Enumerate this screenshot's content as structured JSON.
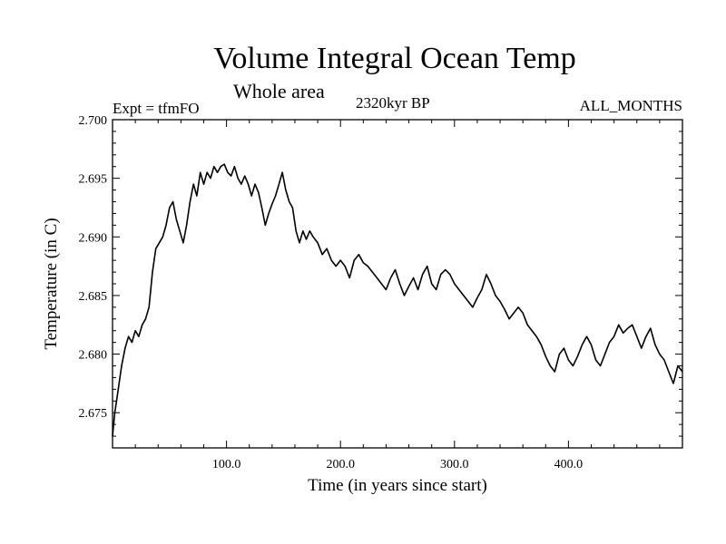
{
  "chart_data": {
    "type": "line",
    "title": "Volume Integral Ocean Temp",
    "subtitle": "Whole area",
    "left_label": "Expt = tfmFO",
    "center_label": "2320kyr BP",
    "right_label": "ALL_MONTHS",
    "xlabel": "Time (in years since start)",
    "ylabel": "Temperature (in C)",
    "xlim": [
      0,
      500
    ],
    "ylim": [
      2.672,
      2.7
    ],
    "xticks": [
      100,
      200,
      300,
      400
    ],
    "xtick_labels": [
      "100.0",
      "200.0",
      "300.0",
      "400.0"
    ],
    "yticks": [
      2.675,
      2.68,
      2.685,
      2.69,
      2.695,
      2.7
    ],
    "ytick_labels": [
      "2.675",
      "2.680",
      "2.685",
      "2.690",
      "2.695",
      "2.700"
    ],
    "grid": false,
    "series": [
      {
        "name": "Volume Integral Ocean Temp",
        "x": [
          0,
          2,
          5,
          8,
          11,
          14,
          17,
          20,
          23,
          26,
          29,
          32,
          35,
          38,
          41,
          44,
          47,
          50,
          53,
          56,
          59,
          62,
          65,
          68,
          71,
          74,
          77,
          80,
          83,
          86,
          89,
          92,
          95,
          98,
          101,
          104,
          107,
          110,
          113,
          116,
          119,
          122,
          125,
          128,
          131,
          134,
          137,
          140,
          143,
          146,
          149,
          152,
          155,
          158,
          161,
          164,
          167,
          170,
          173,
          176,
          180,
          184,
          188,
          192,
          196,
          200,
          204,
          208,
          212,
          216,
          220,
          224,
          228,
          232,
          236,
          240,
          244,
          248,
          252,
          256,
          260,
          264,
          268,
          272,
          276,
          280,
          284,
          288,
          292,
          296,
          300,
          304,
          308,
          312,
          316,
          320,
          324,
          328,
          332,
          336,
          340,
          344,
          348,
          352,
          356,
          360,
          364,
          368,
          372,
          376,
          380,
          384,
          388,
          392,
          396,
          400,
          404,
          408,
          412,
          416,
          420,
          424,
          428,
          432,
          436,
          440,
          444,
          448,
          452,
          456,
          460,
          464,
          468,
          472,
          476,
          480,
          484,
          488,
          492,
          496,
          500
        ],
        "values": [
          2.673,
          2.675,
          2.677,
          2.679,
          2.6805,
          2.6815,
          2.681,
          2.682,
          2.6815,
          2.6825,
          2.683,
          2.684,
          2.687,
          2.689,
          2.6895,
          2.69,
          2.691,
          2.6925,
          2.693,
          2.6915,
          2.6905,
          2.6895,
          2.691,
          2.693,
          2.6945,
          2.6935,
          2.6955,
          2.6945,
          2.6955,
          2.695,
          2.696,
          2.6955,
          2.696,
          2.6962,
          2.6955,
          2.6952,
          2.696,
          2.695,
          2.6945,
          2.6952,
          2.6945,
          2.6935,
          2.6945,
          2.6938,
          2.6925,
          2.691,
          2.692,
          2.6928,
          2.6935,
          2.6945,
          2.6955,
          2.694,
          2.693,
          2.6925,
          2.6905,
          2.6895,
          2.6905,
          2.6898,
          2.6905,
          2.69,
          2.6895,
          2.6885,
          2.689,
          2.688,
          2.6875,
          2.688,
          2.6875,
          2.6865,
          2.688,
          2.6885,
          2.6878,
          2.6875,
          2.687,
          2.6865,
          2.686,
          2.6855,
          2.6865,
          2.6872,
          2.686,
          2.685,
          2.6858,
          2.6865,
          2.6855,
          2.6868,
          2.6875,
          2.686,
          2.6855,
          2.6868,
          2.6872,
          2.6868,
          2.686,
          2.6855,
          2.685,
          2.6845,
          2.684,
          2.6848,
          2.6855,
          2.6868,
          2.686,
          2.685,
          2.6845,
          2.6838,
          2.683,
          2.6835,
          2.684,
          2.6835,
          2.6825,
          2.682,
          2.6815,
          2.6808,
          2.6798,
          2.679,
          2.6785,
          2.68,
          2.6805,
          2.6795,
          2.679,
          2.6798,
          2.6808,
          2.6815,
          2.6808,
          2.6795,
          2.679,
          2.68,
          2.681,
          2.6815,
          2.6825,
          2.6818,
          2.6822,
          2.6825,
          2.6815,
          2.6805,
          2.6815,
          2.6822,
          2.6808,
          2.68,
          2.6795,
          2.6785,
          2.6775,
          2.679,
          2.6785
        ]
      }
    ]
  }
}
